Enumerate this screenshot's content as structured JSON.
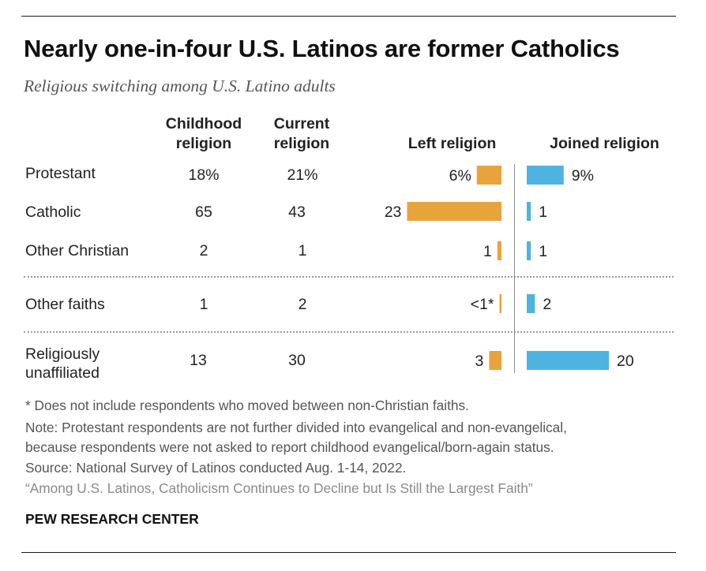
{
  "title": "Nearly one-in-four U.S. Latinos are former Catholics",
  "subtitle": "Religious switching among U.S. Latino adults",
  "columns": {
    "childhood_line1": "Childhood",
    "childhood_line2": "religion",
    "current_line1": "Current",
    "current_line2": "religion",
    "left": "Left religion",
    "joined": "Joined religion"
  },
  "colors": {
    "left": "#E8A33D",
    "joined": "#4EB3E1"
  },
  "chart_data": {
    "type": "table",
    "rows": [
      {
        "label": "Protestant",
        "childhood": "18%",
        "current": "21%",
        "left": 6,
        "left_label": "6%",
        "joined": 9,
        "joined_label": "9%"
      },
      {
        "label": "Catholic",
        "childhood": "65",
        "current": "43",
        "left": 23,
        "left_label": "23",
        "joined": 1,
        "joined_label": "1"
      },
      {
        "label": "Other Christian",
        "childhood": "2",
        "current": "1",
        "left": 1,
        "left_label": "1",
        "joined": 1,
        "joined_label": "1"
      },
      {
        "label": "Other faiths",
        "childhood": "1",
        "current": "2",
        "left": 0.3,
        "left_label": "<1*",
        "joined": 2,
        "joined_label": "2"
      },
      {
        "label_line1": "Religiously",
        "label_line2": "unaffiliated",
        "childhood": "13",
        "current": "30",
        "left": 3,
        "left_label": "3",
        "joined": 20,
        "joined_label": "20"
      }
    ]
  },
  "notes": {
    "asterisk": "* Does not include respondents who moved between non-Christian faiths.",
    "note_line1": "Note: Protestant respondents are not further divided into evangelical and non-evangelical,",
    "note_line2": "because respondents were not asked to report childhood evangelical/born-again status.",
    "source": "Source: National Survey of Latinos conducted Aug. 1-14, 2022.",
    "citation": "“Among U.S. Latinos, Catholicism Continues to Decline but Is Still the Largest Faith”"
  },
  "brand": "PEW RESEARCH CENTER"
}
